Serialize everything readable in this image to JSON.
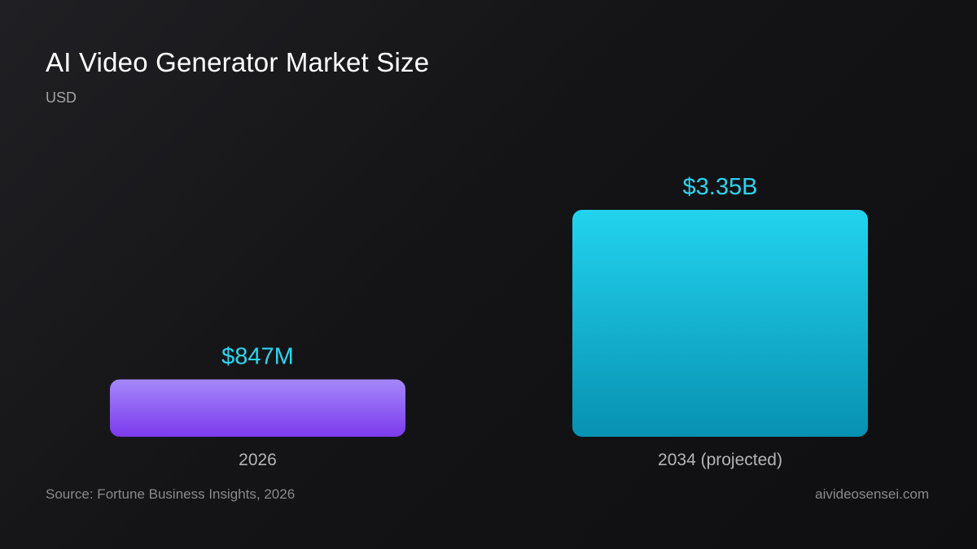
{
  "header": {
    "title": "AI Video Generator Market Size",
    "subtitle": "USD"
  },
  "footer": {
    "source": "Source: Fortune Business Insights, 2026",
    "site": "aivideosensei.com"
  },
  "colors": {
    "value_label": "#2dd4f0",
    "category_label": "#b5b5b5",
    "bar_2026_top": "#a488fa",
    "bar_2026_bottom": "#7c3aed",
    "bar_2034_top": "#22d3ee",
    "bar_2034_bottom": "#0891b2"
  },
  "chart_data": {
    "type": "bar",
    "categories": [
      "2026",
      "2034 (projected)"
    ],
    "values": [
      0.847,
      3.35
    ],
    "value_labels": [
      "$847M",
      "$3.35B"
    ],
    "ylim": [
      0,
      3.35
    ],
    "units": "USD",
    "grid": false
  }
}
